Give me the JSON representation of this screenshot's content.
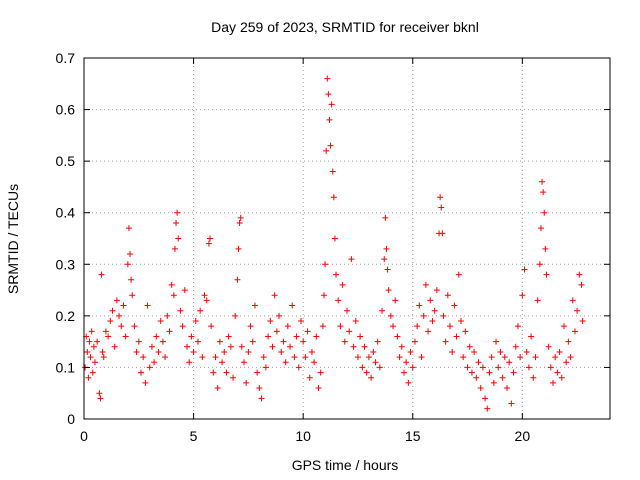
{
  "chart_data": {
    "type": "scatter",
    "title": "Day 259 of 2023, SRMTID for receiver bknl",
    "xlabel": "GPS time / hours",
    "ylabel": "SRMTID / TECUs",
    "xlim": [
      0,
      24
    ],
    "ylim": [
      0,
      0.7
    ],
    "xticks": [
      0,
      5,
      10,
      15,
      20
    ],
    "xtick_labels": [
      "0",
      "5",
      "10",
      "15",
      "20"
    ],
    "yticks": [
      0,
      0.1,
      0.2,
      0.3,
      0.4,
      0.5,
      0.6,
      0.7
    ],
    "ytick_labels": [
      "0",
      "0.1",
      "0.2",
      "0.3",
      "0.4",
      "0.5",
      "0.6",
      "0.7"
    ],
    "grid": true,
    "marker": "+",
    "series": [
      {
        "name": "bknl",
        "color": "#ff0000",
        "points": [
          [
            0.05,
            0.1
          ],
          [
            0.1,
            0.16
          ],
          [
            0.15,
            0.13
          ],
          [
            0.2,
            0.08
          ],
          [
            0.25,
            0.15
          ],
          [
            0.3,
            0.12
          ],
          [
            0.35,
            0.17
          ],
          [
            0.4,
            0.09
          ],
          [
            0.45,
            0.14
          ],
          [
            0.5,
            0.11
          ],
          [
            0.6,
            0.15
          ],
          [
            0.7,
            0.05
          ],
          [
            0.75,
            0.04
          ],
          [
            0.8,
            0.28
          ],
          [
            0.85,
            0.13
          ],
          [
            0.9,
            0.12
          ],
          [
            1.0,
            0.17
          ],
          [
            1.1,
            0.16
          ],
          [
            1.2,
            0.19
          ],
          [
            1.3,
            0.21
          ],
          [
            1.4,
            0.14
          ],
          [
            1.5,
            0.23
          ],
          [
            1.6,
            0.2
          ],
          [
            1.7,
            0.18
          ],
          [
            1.8,
            0.22
          ],
          [
            1.9,
            0.16
          ],
          [
            2.0,
            0.3
          ],
          [
            2.05,
            0.37
          ],
          [
            2.1,
            0.32
          ],
          [
            2.15,
            0.27
          ],
          [
            2.2,
            0.24
          ],
          [
            2.3,
            0.18
          ],
          [
            2.4,
            0.13
          ],
          [
            2.5,
            0.15
          ],
          [
            2.6,
            0.09
          ],
          [
            2.7,
            0.12
          ],
          [
            2.8,
            0.07
          ],
          [
            2.9,
            0.22
          ],
          [
            3.0,
            0.1
          ],
          [
            3.1,
            0.14
          ],
          [
            3.2,
            0.11
          ],
          [
            3.3,
            0.16
          ],
          [
            3.4,
            0.13
          ],
          [
            3.5,
            0.19
          ],
          [
            3.6,
            0.15
          ],
          [
            3.7,
            0.12
          ],
          [
            3.8,
            0.2
          ],
          [
            3.9,
            0.17
          ],
          [
            4.0,
            0.26
          ],
          [
            4.1,
            0.24
          ],
          [
            4.15,
            0.33
          ],
          [
            4.2,
            0.38
          ],
          [
            4.25,
            0.4
          ],
          [
            4.3,
            0.35
          ],
          [
            4.4,
            0.21
          ],
          [
            4.5,
            0.18
          ],
          [
            4.6,
            0.25
          ],
          [
            4.7,
            0.14
          ],
          [
            4.8,
            0.11
          ],
          [
            4.9,
            0.16
          ],
          [
            5.0,
            0.13
          ],
          [
            5.1,
            0.19
          ],
          [
            5.2,
            0.15
          ],
          [
            5.3,
            0.21
          ],
          [
            5.4,
            0.12
          ],
          [
            5.5,
            0.24
          ],
          [
            5.6,
            0.23
          ],
          [
            5.7,
            0.34
          ],
          [
            5.75,
            0.35
          ],
          [
            5.8,
            0.18
          ],
          [
            5.9,
            0.09
          ],
          [
            6.0,
            0.12
          ],
          [
            6.1,
            0.06
          ],
          [
            6.2,
            0.15
          ],
          [
            6.3,
            0.11
          ],
          [
            6.4,
            0.13
          ],
          [
            6.5,
            0.09
          ],
          [
            6.6,
            0.16
          ],
          [
            6.7,
            0.14
          ],
          [
            6.8,
            0.08
          ],
          [
            6.9,
            0.2
          ],
          [
            7.0,
            0.27
          ],
          [
            7.05,
            0.33
          ],
          [
            7.1,
            0.38
          ],
          [
            7.15,
            0.39
          ],
          [
            7.2,
            0.14
          ],
          [
            7.3,
            0.11
          ],
          [
            7.4,
            0.07
          ],
          [
            7.5,
            0.13
          ],
          [
            7.6,
            0.18
          ],
          [
            7.7,
            0.15
          ],
          [
            7.8,
            0.22
          ],
          [
            7.9,
            0.09
          ],
          [
            8.0,
            0.06
          ],
          [
            8.1,
            0.04
          ],
          [
            8.2,
            0.12
          ],
          [
            8.3,
            0.1
          ],
          [
            8.4,
            0.16
          ],
          [
            8.5,
            0.19
          ],
          [
            8.6,
            0.14
          ],
          [
            8.7,
            0.24
          ],
          [
            8.8,
            0.17
          ],
          [
            8.9,
            0.2
          ],
          [
            9.0,
            0.13
          ],
          [
            9.1,
            0.15
          ],
          [
            9.2,
            0.11
          ],
          [
            9.3,
            0.18
          ],
          [
            9.4,
            0.14
          ],
          [
            9.5,
            0.22
          ],
          [
            9.6,
            0.12
          ],
          [
            9.7,
            0.16
          ],
          [
            9.8,
            0.1
          ],
          [
            9.9,
            0.19
          ],
          [
            10.0,
            0.15
          ],
          [
            10.1,
            0.12
          ],
          [
            10.2,
            0.17
          ],
          [
            10.3,
            0.08
          ],
          [
            10.4,
            0.13
          ],
          [
            10.5,
            0.11
          ],
          [
            10.6,
            0.16
          ],
          [
            10.7,
            0.06
          ],
          [
            10.8,
            0.09
          ],
          [
            10.9,
            0.18
          ],
          [
            10.95,
            0.24
          ],
          [
            11.0,
            0.3
          ],
          [
            11.05,
            0.52
          ],
          [
            11.1,
            0.66
          ],
          [
            11.15,
            0.63
          ],
          [
            11.2,
            0.58
          ],
          [
            11.25,
            0.53
          ],
          [
            11.3,
            0.61
          ],
          [
            11.35,
            0.48
          ],
          [
            11.4,
            0.43
          ],
          [
            11.45,
            0.35
          ],
          [
            11.5,
            0.28
          ],
          [
            11.6,
            0.23
          ],
          [
            11.7,
            0.18
          ],
          [
            11.8,
            0.26
          ],
          [
            11.9,
            0.15
          ],
          [
            12.0,
            0.21
          ],
          [
            12.1,
            0.17
          ],
          [
            12.2,
            0.31
          ],
          [
            12.3,
            0.14
          ],
          [
            12.4,
            0.19
          ],
          [
            12.5,
            0.12
          ],
          [
            12.6,
            0.16
          ],
          [
            12.7,
            0.1
          ],
          [
            12.8,
            0.14
          ],
          [
            12.9,
            0.09
          ],
          [
            13.0,
            0.12
          ],
          [
            13.1,
            0.08
          ],
          [
            13.2,
            0.13
          ],
          [
            13.3,
            0.11
          ],
          [
            13.4,
            0.15
          ],
          [
            13.5,
            0.1
          ],
          [
            13.6,
            0.21
          ],
          [
            13.7,
            0.31
          ],
          [
            13.75,
            0.39
          ],
          [
            13.8,
            0.33
          ],
          [
            13.85,
            0.29
          ],
          [
            13.9,
            0.25
          ],
          [
            14.0,
            0.2
          ],
          [
            14.1,
            0.18
          ],
          [
            14.2,
            0.23
          ],
          [
            14.3,
            0.16
          ],
          [
            14.4,
            0.12
          ],
          [
            14.5,
            0.14
          ],
          [
            14.6,
            0.09
          ],
          [
            14.7,
            0.11
          ],
          [
            14.8,
            0.07
          ],
          [
            14.9,
            0.13
          ],
          [
            15.0,
            0.1
          ],
          [
            15.1,
            0.15
          ],
          [
            15.2,
            0.18
          ],
          [
            15.3,
            0.22
          ],
          [
            15.4,
            0.12
          ],
          [
            15.5,
            0.2
          ],
          [
            15.6,
            0.26
          ],
          [
            15.7,
            0.17
          ],
          [
            15.8,
            0.23
          ],
          [
            15.9,
            0.19
          ],
          [
            16.0,
            0.21
          ],
          [
            16.1,
            0.25
          ],
          [
            16.2,
            0.36
          ],
          [
            16.25,
            0.43
          ],
          [
            16.3,
            0.41
          ],
          [
            16.35,
            0.36
          ],
          [
            16.4,
            0.2
          ],
          [
            16.5,
            0.15
          ],
          [
            16.6,
            0.24
          ],
          [
            16.7,
            0.18
          ],
          [
            16.8,
            0.13
          ],
          [
            16.9,
            0.22
          ],
          [
            17.0,
            0.16
          ],
          [
            17.1,
            0.28
          ],
          [
            17.2,
            0.19
          ],
          [
            17.3,
            0.12
          ],
          [
            17.4,
            0.17
          ],
          [
            17.5,
            0.1
          ],
          [
            17.6,
            0.14
          ],
          [
            17.7,
            0.09
          ],
          [
            17.8,
            0.13
          ],
          [
            17.9,
            0.08
          ],
          [
            18.0,
            0.11
          ],
          [
            18.1,
            0.06
          ],
          [
            18.2,
            0.1
          ],
          [
            18.3,
            0.04
          ],
          [
            18.4,
            0.02
          ],
          [
            18.5,
            0.09
          ],
          [
            18.6,
            0.12
          ],
          [
            18.7,
            0.07
          ],
          [
            18.8,
            0.15
          ],
          [
            18.9,
            0.1
          ],
          [
            19.0,
            0.13
          ],
          [
            19.1,
            0.08
          ],
          [
            19.2,
            0.12
          ],
          [
            19.3,
            0.06
          ],
          [
            19.4,
            0.11
          ],
          [
            19.5,
            0.03
          ],
          [
            19.6,
            0.09
          ],
          [
            19.7,
            0.14
          ],
          [
            19.8,
            0.18
          ],
          [
            19.9,
            0.12
          ],
          [
            20.0,
            0.24
          ],
          [
            20.1,
            0.29
          ],
          [
            20.2,
            0.13
          ],
          [
            20.3,
            0.1
          ],
          [
            20.4,
            0.16
          ],
          [
            20.5,
            0.08
          ],
          [
            20.6,
            0.12
          ],
          [
            20.7,
            0.23
          ],
          [
            20.8,
            0.3
          ],
          [
            20.85,
            0.37
          ],
          [
            20.9,
            0.46
          ],
          [
            20.95,
            0.44
          ],
          [
            21.0,
            0.4
          ],
          [
            21.05,
            0.33
          ],
          [
            21.1,
            0.28
          ],
          [
            21.2,
            0.14
          ],
          [
            21.3,
            0.1
          ],
          [
            21.4,
            0.07
          ],
          [
            21.5,
            0.12
          ],
          [
            21.6,
            0.09
          ],
          [
            21.7,
            0.13
          ],
          [
            21.8,
            0.08
          ],
          [
            21.9,
            0.18
          ],
          [
            22.0,
            0.11
          ],
          [
            22.1,
            0.15
          ],
          [
            22.2,
            0.12
          ],
          [
            22.3,
            0.23
          ],
          [
            22.4,
            0.17
          ],
          [
            22.5,
            0.21
          ],
          [
            22.6,
            0.28
          ],
          [
            22.7,
            0.26
          ],
          [
            22.75,
            0.19
          ]
        ]
      }
    ]
  }
}
